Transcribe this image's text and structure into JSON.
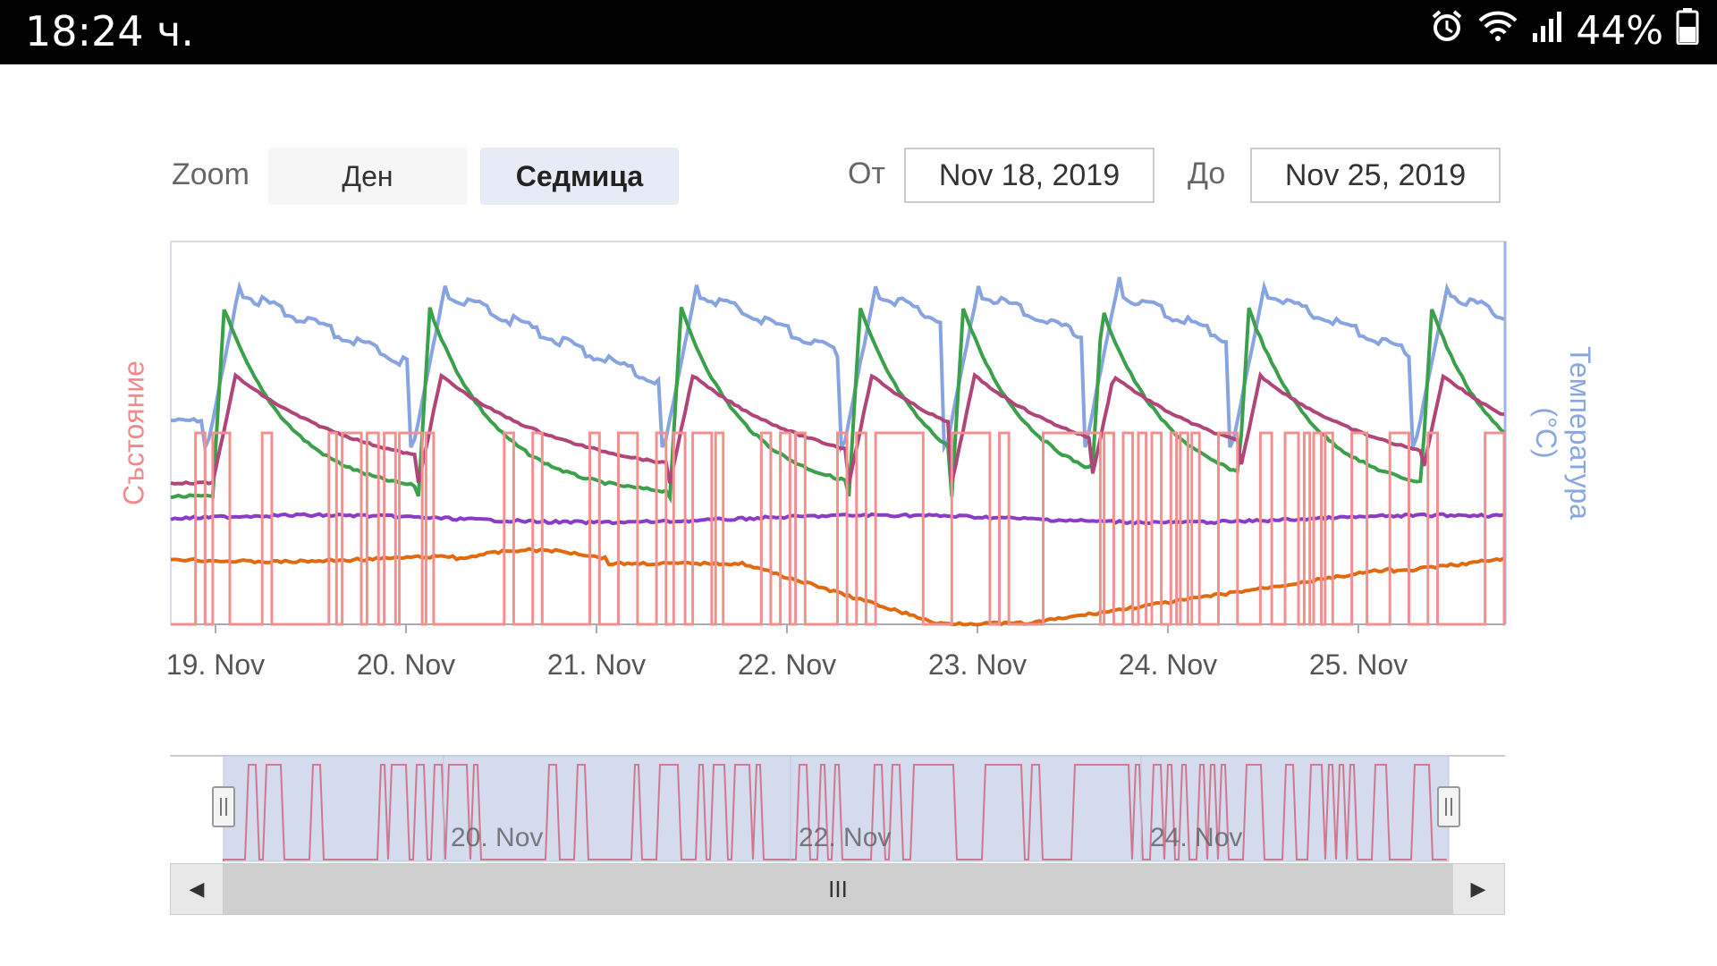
{
  "status_bar": {
    "time": "18:24 ч.",
    "battery": "44%",
    "icons": [
      "alarm-icon",
      "wifi-icon",
      "signal-icon",
      "battery-icon"
    ]
  },
  "controls": {
    "zoom_label": "Zoom",
    "day_button": "Ден",
    "week_button": "Седмица",
    "from_label": "От",
    "from_value": "Nov 18, 2019",
    "to_label": "До",
    "to_value": "Nov 25, 2019"
  },
  "axes": {
    "left_label": "Състояние",
    "right_label_line1": "Температура",
    "right_label_line2": "(°C)"
  },
  "chart_data": {
    "type": "line",
    "x_tick_labels": [
      "19. Nov",
      "20. Nov",
      "21. Nov",
      "22. Nov",
      "23. Nov",
      "24. Nov",
      "25. Nov"
    ],
    "x_range": [
      "2019-11-18T18:00",
      "2019-11-25T19:00"
    ],
    "series": [
      {
        "color": "#88a4e0",
        "axis": "right"
      },
      {
        "color": "#3aa04a",
        "axis": "right"
      },
      {
        "color": "#b0457a",
        "axis": "right"
      },
      {
        "color": "#8a3cc8",
        "axis": "right"
      },
      {
        "color": "#e06a10",
        "axis": "right"
      },
      {
        "color": "#f29090",
        "axis": "left"
      }
    ]
  },
  "navigator": {
    "tick_labels": [
      "20. Nov",
      "22. Nov",
      "24. Nov"
    ]
  },
  "scrollbar": {
    "left_arrow": "◀",
    "right_arrow": "▶",
    "thumb_grip": "III"
  }
}
